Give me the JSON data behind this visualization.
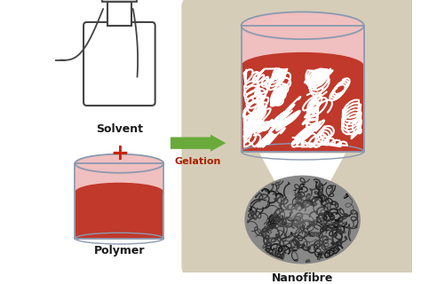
{
  "bg_color": "#ffffff",
  "panel_color": "#d6cdb8",
  "arrow_color": "#6aaa3a",
  "arrow_label": "Gelation",
  "solvent_label": "Solvent",
  "polymer_label": "Polymer",
  "nanofibre_label": "Nanofibre",
  "cylinder_fill_red": "#c0392b",
  "cylinder_fill_pink": "#f0bfbf",
  "cylinder_stroke": "#8a9ab0",
  "plus_color": "#cc2200",
  "label_color": "#1a1a1a",
  "gelation_color": "#aa2200",
  "bottle_color": "#444444",
  "white_fiber": "#ffffff",
  "nano_base": "#888888",
  "nano_dark": "#333333",
  "nano_light": "#bbbbbb"
}
